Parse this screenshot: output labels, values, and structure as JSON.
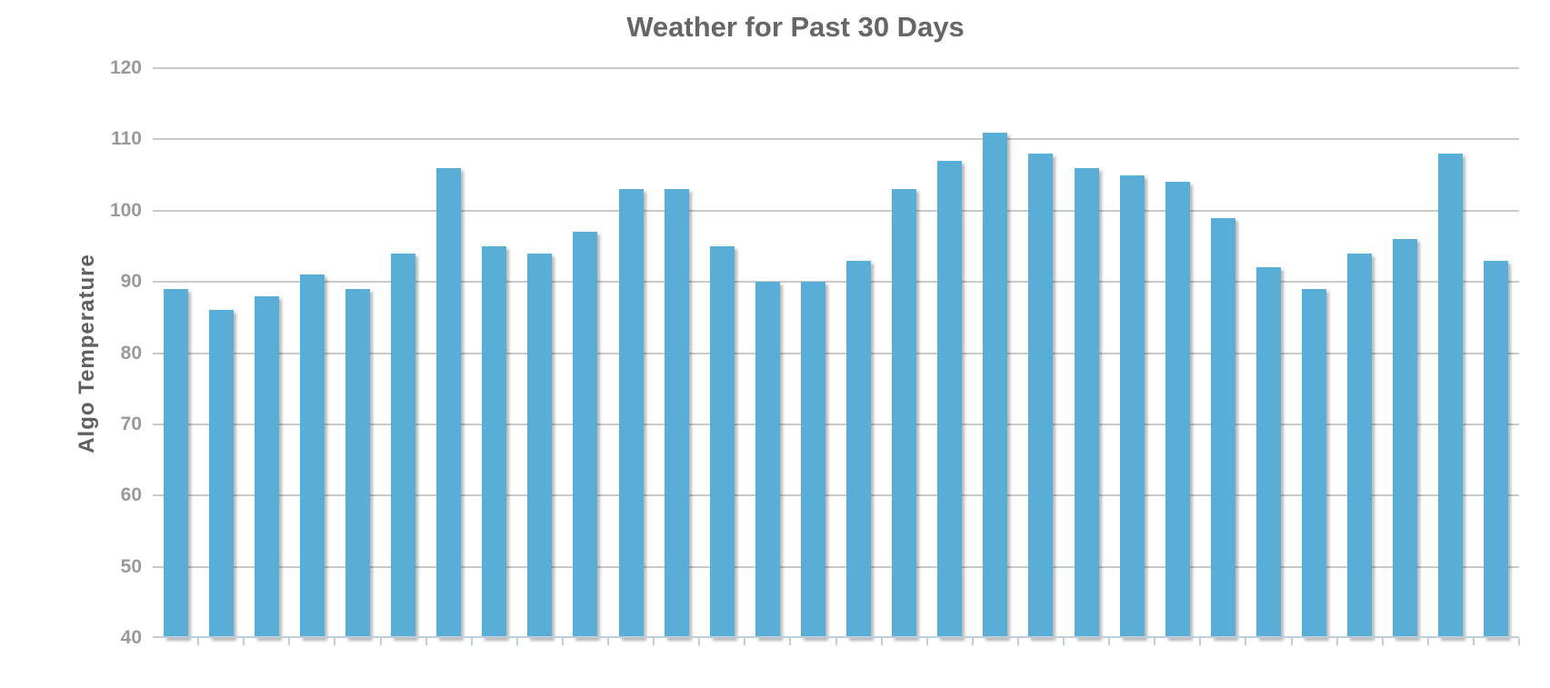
{
  "chart": {
    "title": "Weather for Past 30 Days",
    "y_axis_title": "Algo Temperature"
  },
  "chart_data": {
    "type": "bar",
    "title": "Weather for Past 30 Days",
    "xlabel": "",
    "ylabel": "Algo Temperature",
    "values": [
      89,
      86,
      88,
      91,
      89,
      94,
      106,
      95,
      94,
      97,
      103,
      103,
      95,
      90,
      90,
      93,
      103,
      107,
      111,
      108,
      106,
      105,
      104,
      99,
      92,
      89,
      94,
      96,
      108,
      93
    ],
    "n_bars": 30,
    "ylim": [
      40,
      120
    ],
    "yticks": [
      40,
      50,
      60,
      70,
      80,
      90,
      100,
      110,
      120
    ],
    "x_tick_labels": [],
    "grid": "horizontal-only",
    "legend": "none",
    "bar_color": "#58AED6"
  },
  "colors": {
    "title_text": "#666666",
    "axis_title_text": "#606060",
    "tick_label_text": "#9a9a9a",
    "gridline": "#c9c9c9",
    "axis_line": "#bfcdda",
    "bar_fill": "#58AED6",
    "background": "#ffffff"
  }
}
